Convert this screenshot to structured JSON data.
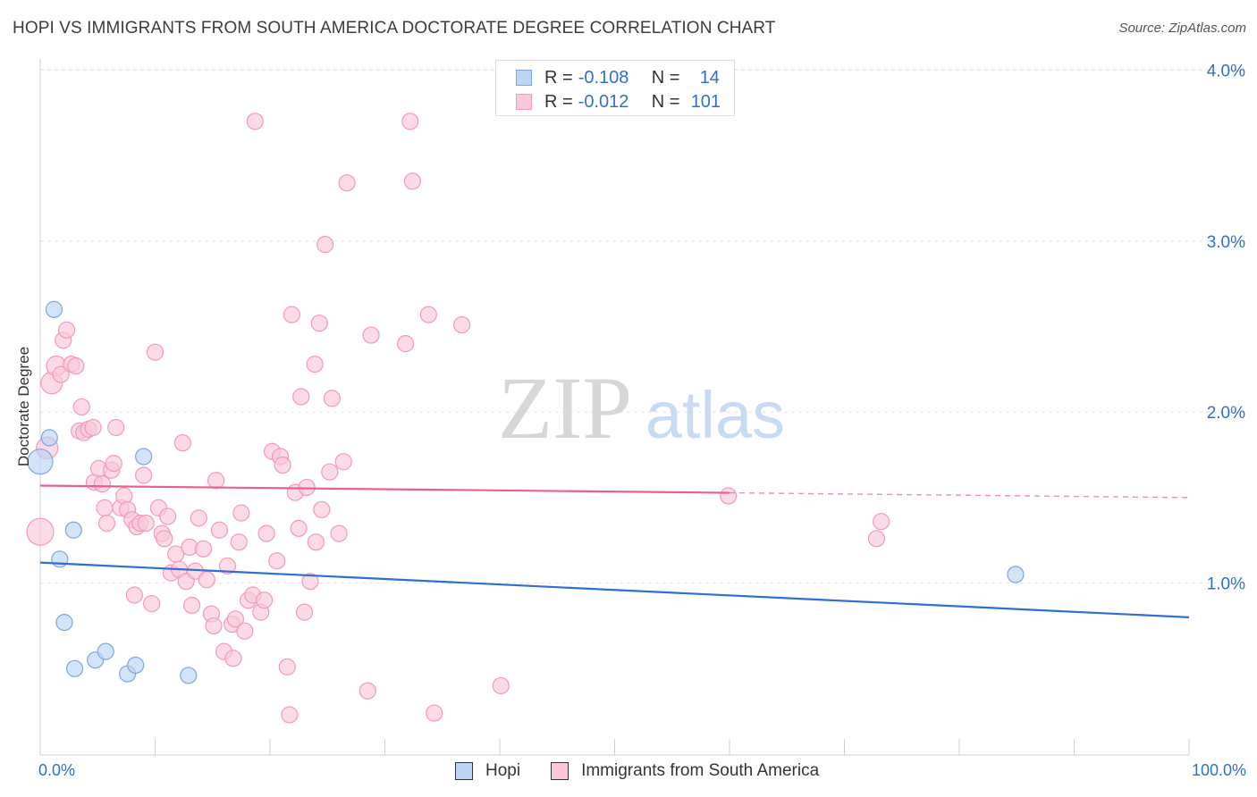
{
  "title": "HOPI VS IMMIGRANTS FROM SOUTH AMERICA DOCTORATE DEGREE CORRELATION CHART",
  "source": "Source: ZipAtlas.com",
  "watermark": {
    "zip": "ZIP",
    "atlas": "atlas"
  },
  "legend": {
    "hopi": {
      "r_label": "R =",
      "r_value": "-0.108",
      "n_label": "N =",
      "n_value": "14"
    },
    "immigrants": {
      "r_label": "R =",
      "r_value": "-0.012",
      "n_label": "N =",
      "n_value": "101"
    }
  },
  "bottom_legend": {
    "hopi": "Hopi",
    "immigrants": "Immigrants from South America"
  },
  "colors": {
    "hopi_fill": "#bcd4f5",
    "hopi_stroke": "#7ea6e0",
    "hopi_line": "#2f6fd0",
    "imm_fill": "#fbc8d8",
    "imm_stroke": "#f19bb6",
    "imm_line": "#e8608c",
    "tick_text": "#2f6fd0",
    "grid": "#e3e3e3"
  },
  "chart_data": {
    "type": "scatter",
    "title": "HOPI VS IMMIGRANTS FROM SOUTH AMERICA DOCTORATE DEGREE CORRELATION CHART",
    "xlabel": "",
    "ylabel": "Doctorate Degree",
    "xlim": [
      0,
      100
    ],
    "ylim": [
      0,
      4.1
    ],
    "x_tick_labels": {
      "min": "0.0%",
      "max": "100.0%"
    },
    "y_ticks": [
      1.0,
      2.0,
      3.0,
      4.0
    ],
    "y_tick_labels": [
      "1.0%",
      "2.0%",
      "3.0%",
      "4.0%"
    ],
    "grid": true,
    "series": [
      {
        "name": "Hopi",
        "points": [
          {
            "x": 0.0,
            "y": 1.71,
            "s": 14
          },
          {
            "x": 0.8,
            "y": 1.85,
            "s": 9
          },
          {
            "x": 1.2,
            "y": 2.6,
            "s": 9
          },
          {
            "x": 1.7,
            "y": 1.14,
            "s": 9
          },
          {
            "x": 2.1,
            "y": 0.77,
            "s": 9
          },
          {
            "x": 2.9,
            "y": 1.31,
            "s": 9
          },
          {
            "x": 3.0,
            "y": 0.5,
            "s": 9
          },
          {
            "x": 4.8,
            "y": 0.55,
            "s": 9
          },
          {
            "x": 5.7,
            "y": 0.6,
            "s": 9
          },
          {
            "x": 7.6,
            "y": 0.47,
            "s": 9
          },
          {
            "x": 8.3,
            "y": 0.52,
            "s": 9
          },
          {
            "x": 9.0,
            "y": 1.74,
            "s": 9
          },
          {
            "x": 12.9,
            "y": 0.46,
            "s": 9
          },
          {
            "x": 84.9,
            "y": 1.05,
            "s": 9
          }
        ],
        "trend": {
          "x0": 0,
          "y0": 1.12,
          "x1": 100,
          "y1": 0.8,
          "dash_from": null
        }
      },
      {
        "name": "Immigrants from South America",
        "points": [
          {
            "x": 0.0,
            "y": 1.3,
            "s": 15
          },
          {
            "x": 0.6,
            "y": 1.79,
            "s": 12
          },
          {
            "x": 1.0,
            "y": 2.17,
            "s": 12
          },
          {
            "x": 1.4,
            "y": 2.27,
            "s": 11
          },
          {
            "x": 1.8,
            "y": 2.22,
            "s": 9
          },
          {
            "x": 2.0,
            "y": 2.42,
            "s": 9
          },
          {
            "x": 2.3,
            "y": 2.48,
            "s": 9
          },
          {
            "x": 2.7,
            "y": 2.28,
            "s": 9
          },
          {
            "x": 3.1,
            "y": 2.27,
            "s": 9
          },
          {
            "x": 3.4,
            "y": 1.89,
            "s": 9
          },
          {
            "x": 3.6,
            "y": 2.03,
            "s": 9
          },
          {
            "x": 3.8,
            "y": 1.88,
            "s": 9
          },
          {
            "x": 4.2,
            "y": 1.9,
            "s": 9
          },
          {
            "x": 4.6,
            "y": 1.91,
            "s": 9
          },
          {
            "x": 4.7,
            "y": 1.59,
            "s": 9
          },
          {
            "x": 5.1,
            "y": 1.67,
            "s": 9
          },
          {
            "x": 5.4,
            "y": 1.58,
            "s": 9
          },
          {
            "x": 5.6,
            "y": 1.44,
            "s": 9
          },
          {
            "x": 5.8,
            "y": 1.35,
            "s": 9
          },
          {
            "x": 6.2,
            "y": 1.66,
            "s": 9
          },
          {
            "x": 6.4,
            "y": 1.7,
            "s": 9
          },
          {
            "x": 6.6,
            "y": 1.91,
            "s": 9
          },
          {
            "x": 7.0,
            "y": 1.44,
            "s": 9
          },
          {
            "x": 7.3,
            "y": 1.51,
            "s": 9
          },
          {
            "x": 7.6,
            "y": 1.43,
            "s": 9
          },
          {
            "x": 8.0,
            "y": 1.37,
            "s": 9
          },
          {
            "x": 8.2,
            "y": 0.93,
            "s": 9
          },
          {
            "x": 8.4,
            "y": 1.33,
            "s": 9
          },
          {
            "x": 8.7,
            "y": 1.35,
            "s": 9
          },
          {
            "x": 9.0,
            "y": 1.63,
            "s": 9
          },
          {
            "x": 9.2,
            "y": 1.35,
            "s": 9
          },
          {
            "x": 9.7,
            "y": 0.88,
            "s": 9
          },
          {
            "x": 10.0,
            "y": 2.35,
            "s": 9
          },
          {
            "x": 10.3,
            "y": 1.44,
            "s": 9
          },
          {
            "x": 10.6,
            "y": 1.29,
            "s": 9
          },
          {
            "x": 10.8,
            "y": 1.26,
            "s": 9
          },
          {
            "x": 11.1,
            "y": 1.39,
            "s": 9
          },
          {
            "x": 11.4,
            "y": 1.06,
            "s": 9
          },
          {
            "x": 11.8,
            "y": 1.17,
            "s": 9
          },
          {
            "x": 12.1,
            "y": 1.08,
            "s": 9
          },
          {
            "x": 12.4,
            "y": 1.82,
            "s": 9
          },
          {
            "x": 12.7,
            "y": 1.01,
            "s": 9
          },
          {
            "x": 13.0,
            "y": 1.21,
            "s": 9
          },
          {
            "x": 13.2,
            "y": 0.87,
            "s": 9
          },
          {
            "x": 13.5,
            "y": 1.07,
            "s": 9
          },
          {
            "x": 13.8,
            "y": 1.38,
            "s": 9
          },
          {
            "x": 14.2,
            "y": 1.2,
            "s": 9
          },
          {
            "x": 14.5,
            "y": 1.02,
            "s": 9
          },
          {
            "x": 14.9,
            "y": 0.82,
            "s": 9
          },
          {
            "x": 15.1,
            "y": 0.75,
            "s": 9
          },
          {
            "x": 15.3,
            "y": 1.6,
            "s": 9
          },
          {
            "x": 15.6,
            "y": 1.31,
            "s": 9
          },
          {
            "x": 16.0,
            "y": 0.6,
            "s": 9
          },
          {
            "x": 16.3,
            "y": 1.1,
            "s": 9
          },
          {
            "x": 16.7,
            "y": 0.76,
            "s": 9
          },
          {
            "x": 17.0,
            "y": 0.79,
            "s": 9
          },
          {
            "x": 17.3,
            "y": 1.24,
            "s": 9
          },
          {
            "x": 17.5,
            "y": 1.41,
            "s": 9
          },
          {
            "x": 17.8,
            "y": 0.72,
            "s": 9
          },
          {
            "x": 18.1,
            "y": 0.9,
            "s": 9
          },
          {
            "x": 18.5,
            "y": 0.93,
            "s": 9
          },
          {
            "x": 18.7,
            "y": 3.7,
            "s": 9
          },
          {
            "x": 19.2,
            "y": 0.83,
            "s": 9
          },
          {
            "x": 19.5,
            "y": 0.9,
            "s": 9
          },
          {
            "x": 19.7,
            "y": 1.29,
            "s": 9
          },
          {
            "x": 20.2,
            "y": 1.77,
            "s": 9
          },
          {
            "x": 20.6,
            "y": 1.13,
            "s": 9
          },
          {
            "x": 20.9,
            "y": 1.74,
            "s": 9
          },
          {
            "x": 21.1,
            "y": 1.69,
            "s": 9
          },
          {
            "x": 21.5,
            "y": 0.51,
            "s": 9
          },
          {
            "x": 21.7,
            "y": 0.23,
            "s": 9
          },
          {
            "x": 21.9,
            "y": 2.57,
            "s": 9
          },
          {
            "x": 22.2,
            "y": 1.53,
            "s": 9
          },
          {
            "x": 22.5,
            "y": 1.32,
            "s": 9
          },
          {
            "x": 22.7,
            "y": 2.09,
            "s": 9
          },
          {
            "x": 23.0,
            "y": 0.83,
            "s": 9
          },
          {
            "x": 23.2,
            "y": 1.56,
            "s": 9
          },
          {
            "x": 23.5,
            "y": 1.01,
            "s": 9
          },
          {
            "x": 24.0,
            "y": 1.24,
            "s": 9
          },
          {
            "x": 24.5,
            "y": 1.43,
            "s": 9
          },
          {
            "x": 24.8,
            "y": 2.98,
            "s": 9
          },
          {
            "x": 26.0,
            "y": 1.29,
            "s": 9
          },
          {
            "x": 26.4,
            "y": 1.71,
            "s": 9
          },
          {
            "x": 26.7,
            "y": 3.34,
            "s": 9
          },
          {
            "x": 28.5,
            "y": 0.37,
            "s": 9
          },
          {
            "x": 28.8,
            "y": 2.45,
            "s": 9
          },
          {
            "x": 31.8,
            "y": 2.4,
            "s": 9
          },
          {
            "x": 32.2,
            "y": 3.7,
            "s": 9
          },
          {
            "x": 32.4,
            "y": 3.35,
            "s": 9
          },
          {
            "x": 33.8,
            "y": 2.57,
            "s": 9
          },
          {
            "x": 34.3,
            "y": 0.24,
            "s": 9
          },
          {
            "x": 36.7,
            "y": 2.51,
            "s": 9
          },
          {
            "x": 40.1,
            "y": 0.4,
            "s": 9
          },
          {
            "x": 59.9,
            "y": 1.51,
            "s": 9
          },
          {
            "x": 72.8,
            "y": 1.26,
            "s": 9
          },
          {
            "x": 73.2,
            "y": 1.36,
            "s": 9
          },
          {
            "x": 16.8,
            "y": 0.56,
            "s": 9
          },
          {
            "x": 25.2,
            "y": 1.65,
            "s": 9
          },
          {
            "x": 25.4,
            "y": 2.08,
            "s": 9
          },
          {
            "x": 23.9,
            "y": 2.28,
            "s": 9
          },
          {
            "x": 24.3,
            "y": 2.52,
            "s": 9
          }
        ],
        "trend": {
          "x0": 0,
          "y0": 1.57,
          "x1": 100,
          "y1": 1.5,
          "dash_from": 60
        }
      }
    ]
  }
}
